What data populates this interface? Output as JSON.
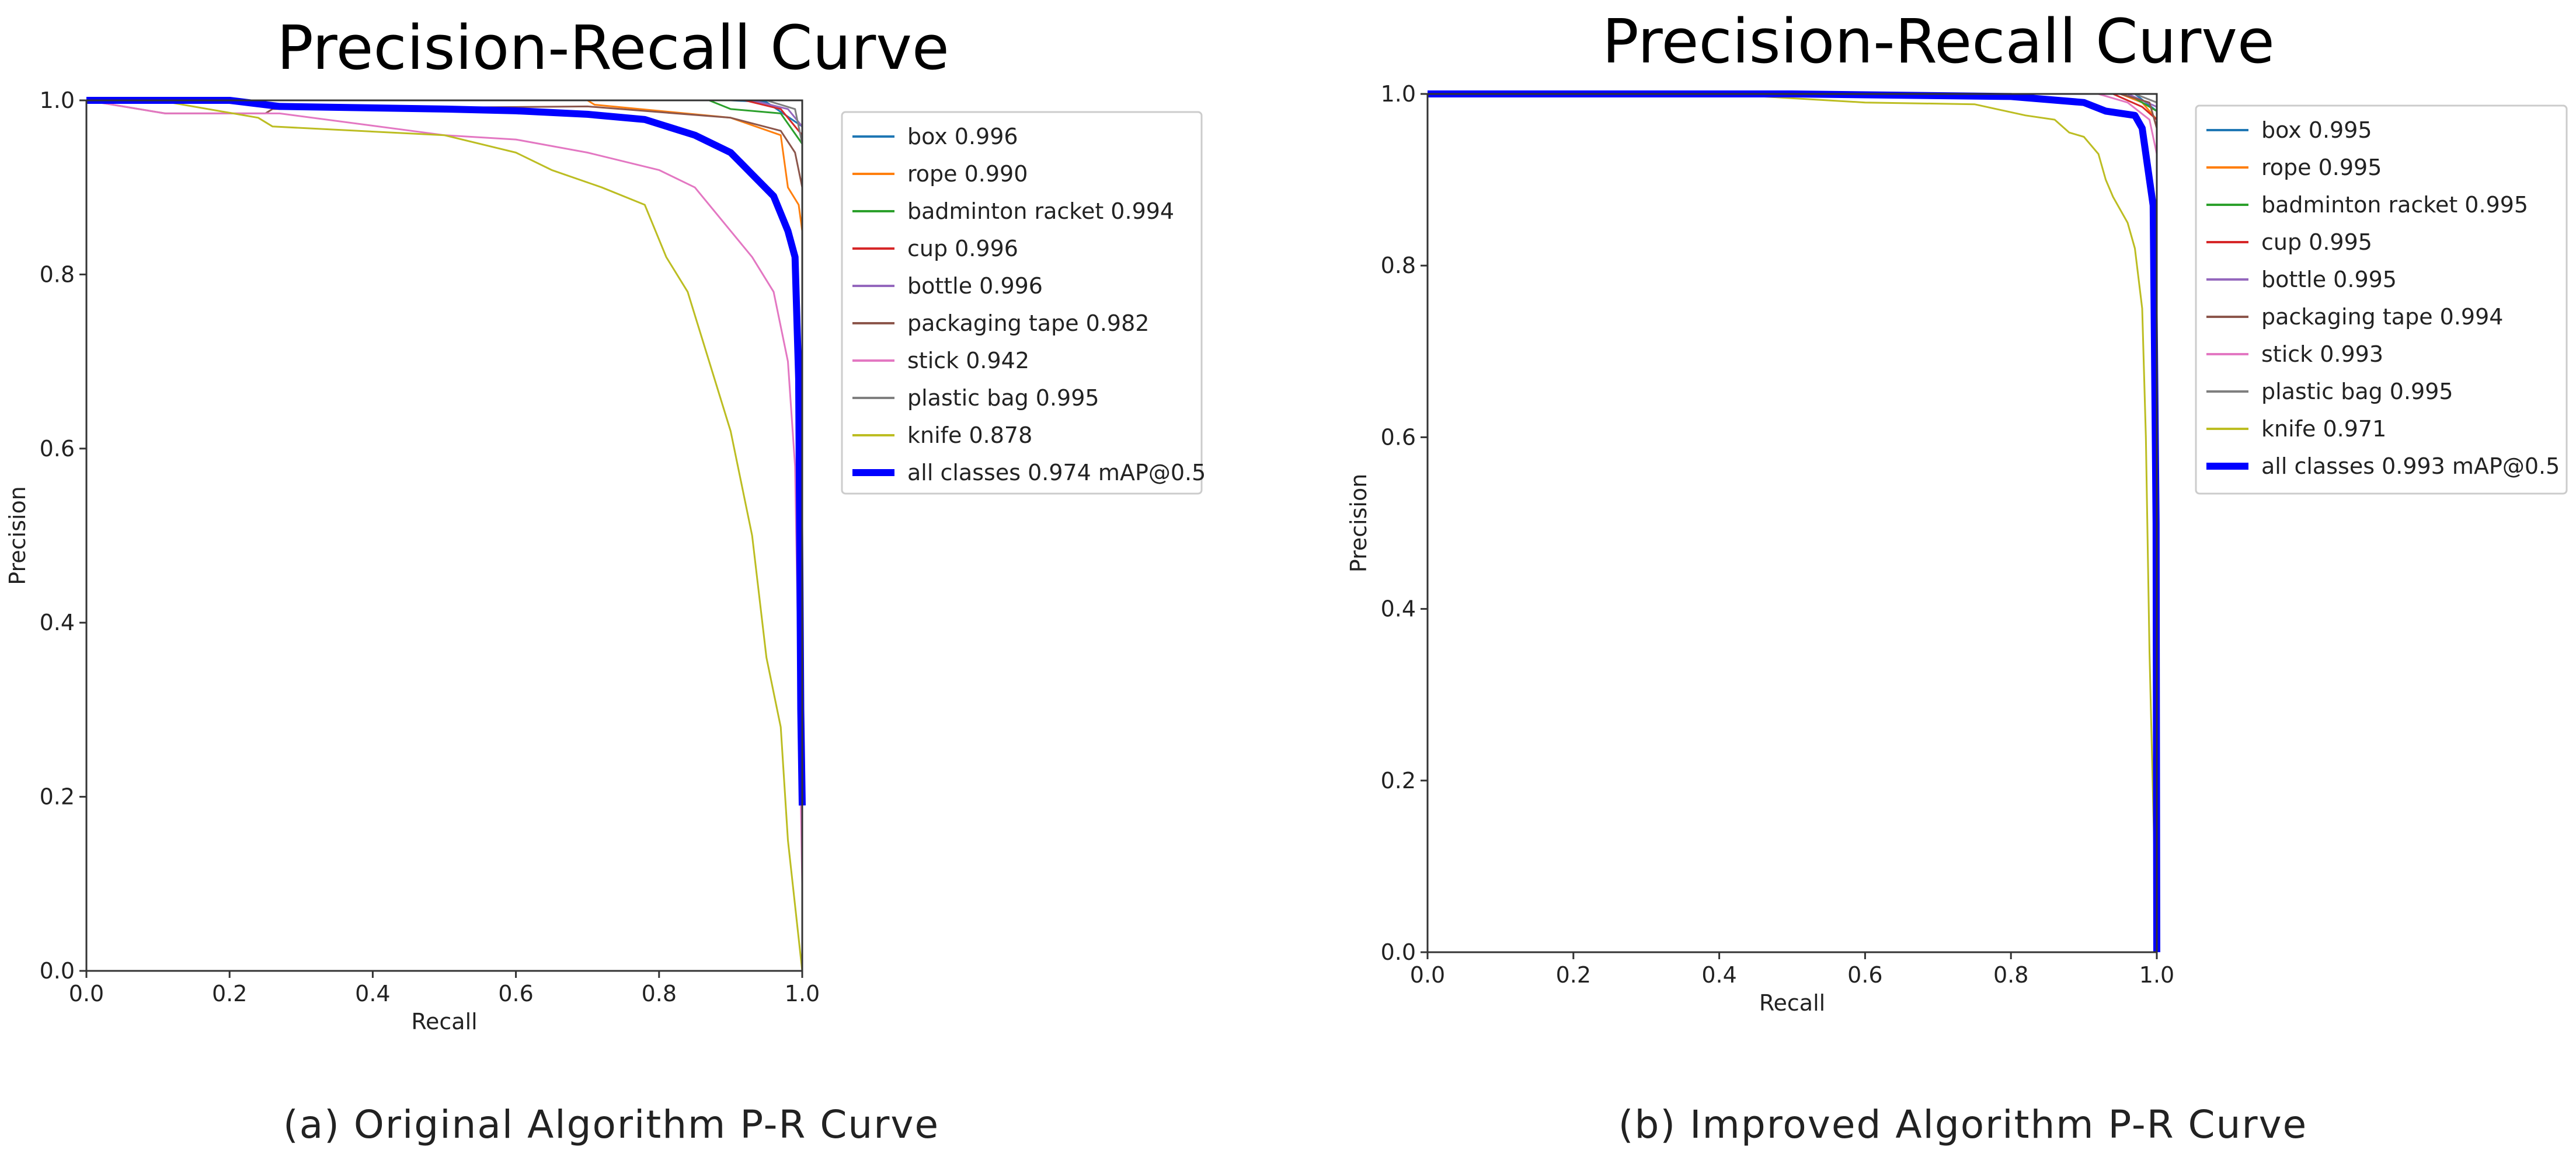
{
  "chart_data": [
    {
      "type": "line",
      "title": "Precision-Recall Curve",
      "xlabel": "Recall",
      "ylabel": "Precision",
      "xlim": [
        0,
        1
      ],
      "ylim": [
        0,
        1
      ],
      "xticks": [
        "0.0",
        "0.2",
        "0.4",
        "0.6",
        "0.8",
        "1.0"
      ],
      "yticks": [
        "0.0",
        "0.2",
        "0.4",
        "0.6",
        "0.8",
        "1.0"
      ],
      "grid": false,
      "legend_placement": "outside-right",
      "caption": "(a)  Original Algorithm P-R Curve",
      "series": [
        {
          "name": "box 0.996",
          "color": "#1f77b4",
          "points": [
            [
              0,
              1
            ],
            [
              0.9,
              1
            ],
            [
              0.95,
              0.998
            ],
            [
              1,
              0.97
            ]
          ]
        },
        {
          "name": "rope 0.990",
          "color": "#ff7f0e",
          "points": [
            [
              0,
              1
            ],
            [
              0.7,
              1
            ],
            [
              0.71,
              0.995
            ],
            [
              0.9,
              0.98
            ],
            [
              0.97,
              0.96
            ],
            [
              0.98,
              0.9
            ],
            [
              0.995,
              0.88
            ],
            [
              1,
              0.85
            ]
          ]
        },
        {
          "name": "badminton racket 0.994",
          "color": "#2ca02c",
          "points": [
            [
              0,
              1
            ],
            [
              0.87,
              1
            ],
            [
              0.9,
              0.99
            ],
            [
              0.97,
              0.985
            ],
            [
              1,
              0.95
            ]
          ]
        },
        {
          "name": "cup 0.996",
          "color": "#d62728",
          "points": [
            [
              0,
              1
            ],
            [
              0.92,
              1
            ],
            [
              0.97,
              0.99
            ],
            [
              1,
              0.96
            ]
          ]
        },
        {
          "name": "bottle 0.996",
          "color": "#9467bd",
          "points": [
            [
              0,
              1
            ],
            [
              0.93,
              1
            ],
            [
              0.98,
              0.99
            ],
            [
              1,
              0.97
            ]
          ]
        },
        {
          "name": "packaging tape 0.982",
          "color": "#8c564b",
          "points": [
            [
              0,
              1
            ],
            [
              0.11,
              0.985
            ],
            [
              0.25,
              0.985
            ],
            [
              0.26,
              0.99
            ],
            [
              0.7,
              0.993
            ],
            [
              0.9,
              0.98
            ],
            [
              0.97,
              0.965
            ],
            [
              0.99,
              0.94
            ],
            [
              1,
              0.9
            ]
          ]
        },
        {
          "name": "stick 0.942",
          "color": "#e377c2",
          "points": [
            [
              0,
              1
            ],
            [
              0.11,
              0.985
            ],
            [
              0.27,
              0.985
            ],
            [
              0.5,
              0.96
            ],
            [
              0.6,
              0.955
            ],
            [
              0.7,
              0.94
            ],
            [
              0.8,
              0.92
            ],
            [
              0.85,
              0.9
            ],
            [
              0.9,
              0.85
            ],
            [
              0.93,
              0.82
            ],
            [
              0.96,
              0.78
            ],
            [
              0.98,
              0.7
            ],
            [
              0.99,
              0.58
            ],
            [
              1,
              0.1
            ]
          ]
        },
        {
          "name": "plastic bag 0.995",
          "color": "#7f7f7f",
          "points": [
            [
              0,
              1
            ],
            [
              0.95,
              1
            ],
            [
              0.99,
              0.99
            ],
            [
              1,
              0.95
            ]
          ]
        },
        {
          "name": "knife 0.878",
          "color": "#bcbd22",
          "points": [
            [
              0,
              1
            ],
            [
              0.1,
              1
            ],
            [
              0.24,
              0.98
            ],
            [
              0.26,
              0.97
            ],
            [
              0.5,
              0.96
            ],
            [
              0.6,
              0.94
            ],
            [
              0.65,
              0.92
            ],
            [
              0.72,
              0.9
            ],
            [
              0.78,
              0.88
            ],
            [
              0.81,
              0.82
            ],
            [
              0.84,
              0.78
            ],
            [
              0.87,
              0.7
            ],
            [
              0.9,
              0.62
            ],
            [
              0.93,
              0.5
            ],
            [
              0.95,
              0.36
            ],
            [
              0.97,
              0.28
            ],
            [
              0.98,
              0.15
            ],
            [
              1,
              0
            ]
          ]
        },
        {
          "name": "all classes 0.974 mAP@0.5",
          "color": "#0000ff",
          "bold": true,
          "points": [
            [
              0,
              1
            ],
            [
              0.2,
              1
            ],
            [
              0.27,
              0.993
            ],
            [
              0.5,
              0.99
            ],
            [
              0.6,
              0.988
            ],
            [
              0.7,
              0.984
            ],
            [
              0.78,
              0.978
            ],
            [
              0.85,
              0.96
            ],
            [
              0.9,
              0.94
            ],
            [
              0.93,
              0.915
            ],
            [
              0.96,
              0.89
            ],
            [
              0.98,
              0.85
            ],
            [
              0.99,
              0.82
            ],
            [
              0.995,
              0.68
            ],
            [
              0.998,
              0.3
            ],
            [
              1,
              0.19
            ]
          ]
        }
      ]
    },
    {
      "type": "line",
      "title": "Precision-Recall Curve",
      "xlabel": "Recall",
      "ylabel": "Precision",
      "xlim": [
        0,
        1
      ],
      "ylim": [
        0,
        1
      ],
      "xticks": [
        "0.0",
        "0.2",
        "0.4",
        "0.6",
        "0.8",
        "1.0"
      ],
      "yticks": [
        "0.0",
        "0.2",
        "0.4",
        "0.6",
        "0.8",
        "1.0"
      ],
      "grid": false,
      "legend_placement": "outside-right",
      "caption": "(b)  Improved Algorithm P-R Curve",
      "series": [
        {
          "name": "box 0.995",
          "color": "#1f77b4",
          "points": [
            [
              0,
              1
            ],
            [
              0.97,
              1
            ],
            [
              1,
              0.98
            ]
          ]
        },
        {
          "name": "rope 0.995",
          "color": "#ff7f0e",
          "points": [
            [
              0,
              1
            ],
            [
              0.95,
              1
            ],
            [
              0.98,
              0.99
            ],
            [
              1,
              0.97
            ]
          ]
        },
        {
          "name": "badminton racket 0.995",
          "color": "#2ca02c",
          "points": [
            [
              0,
              1
            ],
            [
              0.96,
              1
            ],
            [
              1,
              0.98
            ]
          ]
        },
        {
          "name": "cup 0.995",
          "color": "#d62728",
          "points": [
            [
              0,
              1
            ],
            [
              0.94,
              1
            ],
            [
              0.98,
              0.985
            ],
            [
              1,
              0.97
            ]
          ]
        },
        {
          "name": "bottle 0.995",
          "color": "#9467bd",
          "points": [
            [
              0,
              1
            ],
            [
              0.96,
              1
            ],
            [
              1,
              0.985
            ]
          ]
        },
        {
          "name": "packaging tape 0.994",
          "color": "#8c564b",
          "points": [
            [
              0,
              1
            ],
            [
              0.95,
              1
            ],
            [
              0.99,
              0.99
            ],
            [
              1,
              0.96
            ]
          ]
        },
        {
          "name": "stick 0.993",
          "color": "#e377c2",
          "points": [
            [
              0,
              1
            ],
            [
              0.92,
              1
            ],
            [
              0.96,
              0.99
            ],
            [
              0.99,
              0.97
            ],
            [
              1,
              0.93
            ]
          ]
        },
        {
          "name": "plastic bag 0.995",
          "color": "#7f7f7f",
          "points": [
            [
              0,
              1
            ],
            [
              0.97,
              1
            ],
            [
              1,
              0.99
            ]
          ]
        },
        {
          "name": "knife 0.971",
          "color": "#bcbd22",
          "points": [
            [
              0,
              1
            ],
            [
              0.4,
              1
            ],
            [
              0.6,
              0.99
            ],
            [
              0.75,
              0.988
            ],
            [
              0.82,
              0.975
            ],
            [
              0.86,
              0.97
            ],
            [
              0.88,
              0.955
            ],
            [
              0.9,
              0.95
            ],
            [
              0.92,
              0.93
            ],
            [
              0.93,
              0.9
            ],
            [
              0.94,
              0.88
            ],
            [
              0.96,
              0.85
            ],
            [
              0.97,
              0.82
            ],
            [
              0.98,
              0.75
            ],
            [
              0.985,
              0.6
            ],
            [
              0.99,
              0.35
            ],
            [
              1,
              0
            ]
          ]
        },
        {
          "name": "all classes 0.993 mAP@0.5",
          "color": "#0000ff",
          "bold": true,
          "points": [
            [
              0,
              1
            ],
            [
              0.5,
              1
            ],
            [
              0.8,
              0.997
            ],
            [
              0.9,
              0.99
            ],
            [
              0.93,
              0.98
            ],
            [
              0.97,
              0.975
            ],
            [
              0.98,
              0.96
            ],
            [
              0.99,
              0.9
            ],
            [
              0.995,
              0.87
            ],
            [
              0.999,
              0.5
            ],
            [
              1,
              0
            ]
          ]
        }
      ]
    }
  ]
}
